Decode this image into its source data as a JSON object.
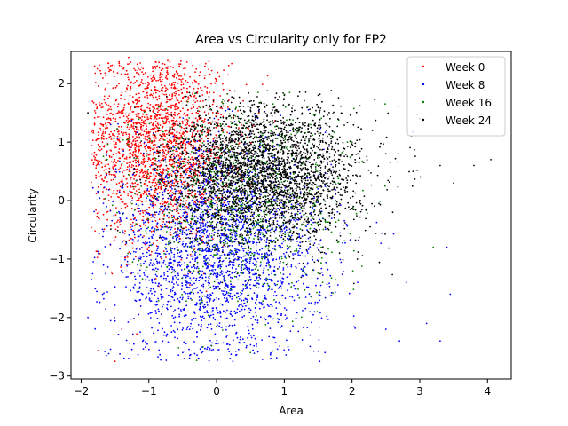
{
  "chart_data": {
    "type": "scatter",
    "title": "Area vs Circularity only for FP2",
    "xlabel": "Area",
    "ylabel": "Circularity",
    "xlim": [
      -2.15,
      4.35
    ],
    "ylim": [
      -3.05,
      2.55
    ],
    "xticks": [
      -2,
      -1,
      0,
      1,
      2,
      3,
      4
    ],
    "yticks": [
      -3,
      -2,
      -1,
      0,
      1,
      2
    ],
    "legend_position": "top-right",
    "grid": false,
    "series": [
      {
        "name": "Week 0",
        "color": "#ff0000",
        "distribution": {
          "count": 2300,
          "x_mean": -0.9,
          "x_sd": 0.55,
          "y_mean": 1.0,
          "y_sd": 0.85,
          "x_min": -1.85,
          "x_max": 1.2,
          "y_min": -2.75,
          "y_max": 2.4
        },
        "points": [
          [
            -1.8,
            2.3
          ],
          [
            -1.6,
            2.35
          ],
          [
            -1.4,
            2.3
          ],
          [
            -1.3,
            2.45
          ],
          [
            -1.1,
            2.2
          ],
          [
            -0.3,
            2.25
          ],
          [
            0.1,
            1.9
          ],
          [
            -1.5,
            -2.75
          ],
          [
            -1.4,
            -2.2
          ],
          [
            -1.0,
            -0.8
          ]
        ]
      },
      {
        "name": "Week 8",
        "color": "#0000ff",
        "distribution": {
          "count": 2600,
          "x_mean": 0.0,
          "x_sd": 0.8,
          "y_mean": -0.9,
          "y_sd": 0.95,
          "x_min": -1.85,
          "x_max": 3.5,
          "y_min": -2.75,
          "y_max": 1.6
        },
        "points": [
          [
            -1.9,
            -2.0
          ],
          [
            -1.3,
            -2.7
          ],
          [
            -0.5,
            -2.6
          ],
          [
            0.2,
            -2.7
          ],
          [
            0.8,
            -2.7
          ],
          [
            1.6,
            -2.6
          ],
          [
            2.5,
            -2.2
          ],
          [
            2.7,
            -2.4
          ],
          [
            3.1,
            -2.1
          ],
          [
            3.45,
            -1.6
          ],
          [
            3.4,
            -0.8
          ],
          [
            2.8,
            -1.4
          ],
          [
            3.3,
            -2.4
          ]
        ]
      },
      {
        "name": "Week 16",
        "color": "#008000",
        "distribution": {
          "count": 900,
          "x_mean": 0.3,
          "x_sd": 0.8,
          "y_mean": 0.0,
          "y_sd": 0.9,
          "x_min": -1.8,
          "x_max": 3.2,
          "y_min": -2.75,
          "y_max": 1.9
        },
        "points": [
          [
            3.2,
            -0.8
          ],
          [
            2.0,
            1.0
          ],
          [
            -0.2,
            -2.5
          ],
          [
            0.5,
            -2.6
          ],
          [
            1.8,
            0.3
          ]
        ]
      },
      {
        "name": "Week 24",
        "color": "#000000",
        "distribution": {
          "count": 3200,
          "x_mean": 0.7,
          "x_sd": 0.7,
          "y_mean": 0.45,
          "y_sd": 0.6,
          "x_min": -1.85,
          "x_max": 4.1,
          "y_min": -2.4,
          "y_max": 1.9
        },
        "points": [
          [
            4.05,
            0.7
          ],
          [
            3.8,
            0.6
          ],
          [
            3.5,
            0.3
          ],
          [
            3.3,
            0.6
          ],
          [
            3.0,
            1.4
          ],
          [
            2.9,
            0.5
          ],
          [
            2.6,
            -0.2
          ],
          [
            2.5,
            0.8
          ],
          [
            2.3,
            1.2
          ],
          [
            1.5,
            1.8
          ],
          [
            1.0,
            1.8
          ],
          [
            -1.9,
            1.5
          ]
        ]
      }
    ]
  }
}
